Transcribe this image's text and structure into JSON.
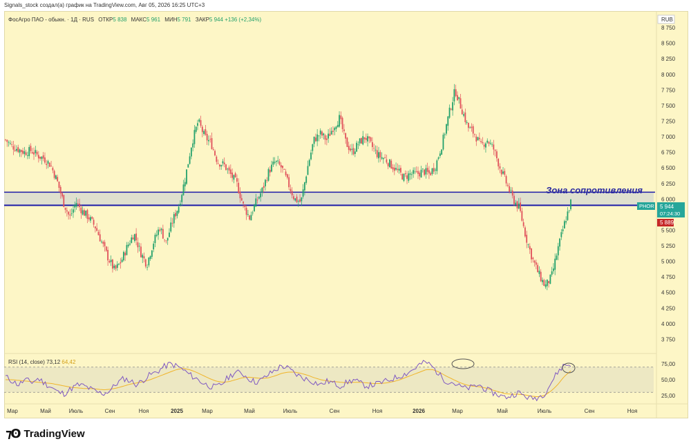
{
  "caption": "Signals_stock создал(а) график на TradingView.com, Авг 05, 2026 16:25 UTC+3",
  "legend": {
    "symbol": "ФосАгро ПАО - обыкн. · 1Д · RUS",
    "open_label": "ОТКР",
    "open": "5 838",
    "high_label": "МАКС",
    "high": "5 961",
    "low_label": "МИН",
    "low": "5 791",
    "close_label": "ЗАКР",
    "close": "5 944",
    "change": "+136 (+2,34%)"
  },
  "currency": "RUB",
  "ticker_tag": "PHOR",
  "price_tag": "5 944",
  "timer_tag": "07:24:30",
  "level_tag": "5 889",
  "zone_label": "Зона сопротивления",
  "rsi": {
    "label": "RSI (14, close)",
    "value": "73,12",
    "ma": "64,42"
  },
  "brand": "TradingView",
  "colors": {
    "background": "#fdf6c6",
    "up": "#22a06b",
    "down": "#e0505a",
    "zone_line": "#1a1aa8",
    "zone_fill": "#d9dccf",
    "rsi": "#7e57c2",
    "rsi_ma": "#f0b429",
    "tag": "#26a69a"
  },
  "chart_data": {
    "type": "candlestick",
    "y_ticks": [
      "8 750",
      "8 500",
      "8 250",
      "8 000",
      "7 750",
      "7 500",
      "7 250",
      "7 000",
      "6 750",
      "6 500",
      "6 250",
      "6 000",
      "5 750",
      "5 500",
      "5 250",
      "5 000",
      "4 750",
      "4 500",
      "4 250",
      "4 000",
      "3 750"
    ],
    "ylim": [
      3600,
      8950
    ],
    "x_ticks": [
      "Мар",
      "Май",
      "Июль",
      "Сен",
      "Ноя",
      "2025",
      "Мар",
      "Май",
      "Июль",
      "Сен",
      "Ноя",
      "2026",
      "Мар",
      "Май",
      "Июль",
      "Сен",
      "Ноя"
    ],
    "resistance_zone": [
      5900,
      6110
    ],
    "close_series": [
      6950,
      6850,
      6800,
      6750,
      6780,
      6700,
      6650,
      6550,
      6300,
      5950,
      5700,
      5950,
      5800,
      5700,
      5550,
      5300,
      5050,
      4850,
      5000,
      5250,
      5450,
      5150,
      4950,
      5300,
      5550,
      5300,
      5650,
      5900,
      6350,
      6900,
      7250,
      7000,
      6900,
      6600,
      6550,
      6400,
      6250,
      5900,
      5700,
      5950,
      6150,
      6450,
      6600,
      6500,
      6250,
      6000,
      5950,
      6500,
      6950,
      7050,
      6950,
      7150,
      7300,
      6900,
      6750,
      6900,
      7000,
      6850,
      6700,
      6650,
      6550,
      6450,
      6350,
      6400,
      6400,
      6450,
      6400,
      6550,
      6900,
      7350,
      7750,
      7450,
      7150,
      7050,
      6850,
      6950,
      6800,
      6500,
      6250,
      6000,
      5850,
      5400,
      5050,
      4800,
      4600,
      4750,
      5200,
      5600,
      5950
    ],
    "rsi_y_ticks": [
      "75,00",
      "50,00",
      "25,00"
    ],
    "rsi_levels": [
      70,
      30
    ],
    "rsi_ylim": [
      15,
      85
    ],
    "rsi_series": [
      55,
      48,
      42,
      50,
      46,
      52,
      44,
      38,
      30,
      28,
      36,
      42,
      40,
      35,
      30,
      28,
      34,
      45,
      52,
      48,
      42,
      50,
      58,
      62,
      70,
      75,
      72,
      66,
      58,
      52,
      45,
      40,
      38,
      44,
      55,
      62,
      60,
      52,
      46,
      50,
      58,
      65,
      72,
      68,
      60,
      54,
      50,
      46,
      42,
      48,
      44,
      40,
      46,
      50,
      44,
      40,
      42,
      45,
      48,
      52,
      56,
      60,
      66,
      74,
      78,
      70,
      58,
      48,
      46,
      40,
      36,
      38,
      42,
      35,
      30,
      26,
      22,
      25,
      30,
      24,
      20,
      22,
      28,
      45,
      62,
      74,
      73
    ],
    "rsi_ma_series": [
      50,
      50,
      49,
      48,
      47,
      46,
      45,
      44,
      42,
      40,
      38,
      37,
      36,
      36,
      35,
      34,
      35,
      37,
      40,
      43,
      45,
      47,
      50,
      54,
      58,
      62,
      66,
      68,
      66,
      62,
      57,
      52,
      48,
      46,
      47,
      50,
      53,
      54,
      53,
      52,
      53,
      56,
      60,
      62,
      62,
      60,
      57,
      53,
      50,
      48,
      47,
      46,
      45,
      46,
      46,
      45,
      44,
      44,
      45,
      47,
      50,
      54,
      58,
      62,
      66,
      66,
      62,
      56,
      51,
      46,
      42,
      40,
      39,
      37,
      34,
      31,
      28,
      27,
      27,
      26,
      24,
      23,
      25,
      32,
      42,
      55,
      64
    ]
  }
}
